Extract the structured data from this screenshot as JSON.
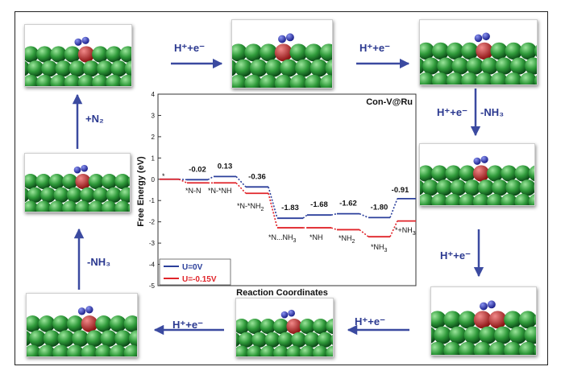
{
  "labels": {
    "top_1": "H⁺+e⁻",
    "top_2": "H⁺+e⁻",
    "right_1": "H⁺+e⁻",
    "right_1b": "-NH₃",
    "right_2": "H⁺+e⁻",
    "bottom_1": "H⁺+e⁻",
    "bottom_2": "H⁺+e⁻",
    "left_1": "-NH₃",
    "left_2": "+N₂"
  },
  "chart_data": {
    "type": "line",
    "title": "Con-V@Ru",
    "xlabel": "Reaction Coordinates",
    "ylabel": "Free Energy (eV)",
    "ylim": [
      -5,
      4
    ],
    "yticks": [
      4,
      3,
      2,
      1,
      0,
      -1,
      -2,
      -3,
      -4,
      -5
    ],
    "intermediates": [
      "*",
      "*N-N",
      "*N-*NH",
      "*N-*NH2",
      "*N...NH3",
      "*NH",
      "*NH2",
      "*NH3",
      "*+NH3"
    ],
    "intermediate_labels": {
      "star": "*",
      "n_n": "*N-N",
      "n_nh": "*N-*NH",
      "n_nh2": "*N-*NH",
      "n_nh2_sub": "2",
      "n_nh3": "*N...NH",
      "n_nh3_sub": "3",
      "nh": "*NH",
      "nh2": "*NH",
      "nh2_sub": "2",
      "nh3": "*NH",
      "nh3_sub": "3",
      "plus_nh3": "*+NH",
      "plus_nh3_sub": "3"
    },
    "series": [
      {
        "name": "U=0V",
        "color": "#2b3f9b",
        "values": [
          0,
          -0.02,
          0.13,
          -0.36,
          -1.83,
          -1.68,
          -1.62,
          -1.8,
          -0.91
        ]
      },
      {
        "name": "U=-0.15V",
        "color": "#e0242a",
        "values": [
          0,
          -0.17,
          -0.17,
          -0.66,
          -2.28,
          -2.28,
          -2.37,
          -2.7,
          -1.96
        ]
      }
    ],
    "value_labels": [
      "-0.02",
      "0.13",
      "-0.36",
      "-1.83",
      "-1.68",
      "-1.62",
      "-1.80",
      "-0.91"
    ],
    "legend_position": "bottom-left"
  }
}
